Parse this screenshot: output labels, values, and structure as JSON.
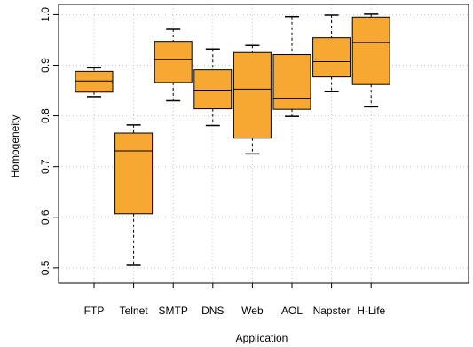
{
  "chart_data": {
    "type": "boxplot",
    "title": "",
    "xlabel": "Application",
    "ylabel": "Homogeneity",
    "ylim": [
      0.47,
      1.02
    ],
    "yticks": [
      0.5,
      0.6,
      0.7,
      0.8,
      0.9,
      1.0
    ],
    "ytick_labels": [
      "0.5",
      "0.6",
      "0.7",
      "0.8",
      "0.9",
      "1.0"
    ],
    "grid": "dotted vertical and horizontal",
    "box_color": "#f7a833",
    "categories": [
      "FTP",
      "Telnet",
      "SMTP",
      "DNS",
      "Web",
      "AOL",
      "Napster",
      "H-Life"
    ],
    "boxes": [
      {
        "whisker_low": 0.838,
        "q1": 0.847,
        "median": 0.869,
        "q3": 0.888,
        "whisker_high": 0.895
      },
      {
        "whisker_low": 0.505,
        "q1": 0.607,
        "median": 0.731,
        "q3": 0.766,
        "whisker_high": 0.782
      },
      {
        "whisker_low": 0.83,
        "q1": 0.866,
        "median": 0.911,
        "q3": 0.947,
        "whisker_high": 0.971
      },
      {
        "whisker_low": 0.781,
        "q1": 0.814,
        "median": 0.851,
        "q3": 0.891,
        "whisker_high": 0.932
      },
      {
        "whisker_low": 0.725,
        "q1": 0.756,
        "median": 0.853,
        "q3": 0.925,
        "whisker_high": 0.939
      },
      {
        "whisker_low": 0.799,
        "q1": 0.813,
        "median": 0.835,
        "q3": 0.921,
        "whisker_high": 0.996
      },
      {
        "whisker_low": 0.848,
        "q1": 0.877,
        "median": 0.907,
        "q3": 0.954,
        "whisker_high": 0.999
      },
      {
        "whisker_low": 0.818,
        "q1": 0.862,
        "median": 0.945,
        "q3": 0.995,
        "whisker_high": 1.001
      }
    ]
  }
}
